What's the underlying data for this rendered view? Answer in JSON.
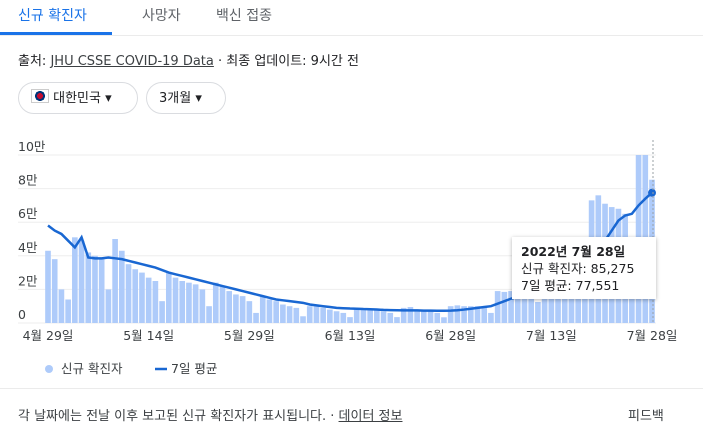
{
  "tabs": [
    "신규 확진자",
    "사망자",
    "백신 접종"
  ],
  "source": {
    "prefix": "출처:",
    "link": "JHU CSSE COVID-19 Data",
    "updated": "· 최종 업데이트: 9시간 전"
  },
  "filters": [
    "대한민국",
    "3개월"
  ],
  "tooltip": {
    "date": "2022년 7월 28일",
    "lines": [
      "신규 확진자: 85,275",
      "7일 평균: 77,551"
    ]
  },
  "footer": {
    "note": "각 날짜에는 전날 이후 보고된 신규 확진자가 표시됩니다. ·",
    "link": "데이터 정보",
    "feedback": "피드백"
  },
  "chart_data": {
    "type": "bar",
    "legend": "bottom-left",
    "grid": true,
    "categories": [
      "4월 29일",
      null,
      null,
      null,
      null,
      null,
      null,
      null,
      null,
      null,
      null,
      null,
      null,
      null,
      null,
      "5월 14일",
      null,
      null,
      null,
      null,
      null,
      null,
      null,
      null,
      null,
      null,
      null,
      null,
      null,
      null,
      "5월 29일",
      null,
      null,
      null,
      null,
      null,
      null,
      null,
      null,
      null,
      null,
      null,
      null,
      null,
      null,
      "6월 13일",
      null,
      null,
      null,
      null,
      null,
      null,
      null,
      null,
      null,
      null,
      null,
      null,
      null,
      null,
      "6월 28일",
      null,
      null,
      null,
      null,
      null,
      null,
      null,
      null,
      null,
      null,
      null,
      null,
      null,
      null,
      "7월 13일",
      null,
      null,
      null,
      null,
      null,
      null,
      null,
      null,
      null,
      null,
      null,
      null,
      null,
      null,
      "7월 28일"
    ],
    "ylim": [
      0,
      100000
    ],
    "yticks": [
      0,
      {
        "value": 20000,
        "label": "2만"
      },
      {
        "value": 40000,
        "label": "4만"
      },
      {
        "value": 60000,
        "label": "6만"
      },
      {
        "value": 80000,
        "label": "8만"
      },
      {
        "value": 100000,
        "label": "10만"
      }
    ],
    "series": [
      {
        "name": "신규 확진자",
        "type": "bar",
        "color": "#aecbfa",
        "values": [
          43000,
          38000,
          20000,
          14000,
          51000,
          49000,
          42000,
          40000,
          38000,
          20000,
          50000,
          43000,
          35000,
          32000,
          30000,
          27000,
          25000,
          13000,
          30000,
          27000,
          25000,
          24000,
          23000,
          20000,
          10000,
          24000,
          22000,
          19000,
          17000,
          16000,
          13000,
          6000,
          16000,
          14000,
          13000,
          11000,
          10000,
          9000,
          4000,
          10000,
          10000,
          9000,
          8000,
          7000,
          6000,
          3500,
          9000,
          8000,
          8000,
          7500,
          7000,
          6000,
          3500,
          9000,
          9500,
          8000,
          7500,
          7000,
          6000,
          3400,
          10000,
          10500,
          10000,
          10000,
          10000,
          9000,
          6000,
          19000,
          18500,
          19000,
          19000,
          20000,
          20000,
          12500,
          37000,
          40000,
          39000,
          38000,
          40000,
          40000,
          26000,
          73000,
          76000,
          71000,
          69000,
          68000,
          65000,
          35000,
          100000,
          100000,
          85275
        ]
      },
      {
        "name": "7일 평균",
        "type": "line",
        "color": "#1967d2",
        "values": [
          58000,
          55000,
          53000,
          49000,
          45000,
          51000,
          39000,
          38500,
          38500,
          39000,
          38500,
          38000,
          37000,
          36000,
          35000,
          34000,
          33000,
          31500,
          30000,
          29000,
          28000,
          27000,
          26000,
          25000,
          24000,
          23000,
          22000,
          21000,
          20000,
          19000,
          18000,
          17000,
          16000,
          15000,
          14000,
          13500,
          13000,
          12500,
          12000,
          11000,
          10500,
          10000,
          9500,
          9000,
          8800,
          8600,
          8500,
          8300,
          8200,
          8000,
          7800,
          7700,
          7600,
          7500,
          7500,
          7500,
          7400,
          7400,
          7300,
          7300,
          7400,
          7600,
          8000,
          8500,
          9000,
          9500,
          10000,
          11500,
          13000,
          14500,
          15500,
          16500,
          17500,
          18500,
          21000,
          24000,
          27000,
          29000,
          31000,
          33500,
          35000,
          39000,
          44000,
          49000,
          55000,
          61000,
          64000,
          65000,
          70000,
          74000,
          77551
        ]
      }
    ]
  }
}
